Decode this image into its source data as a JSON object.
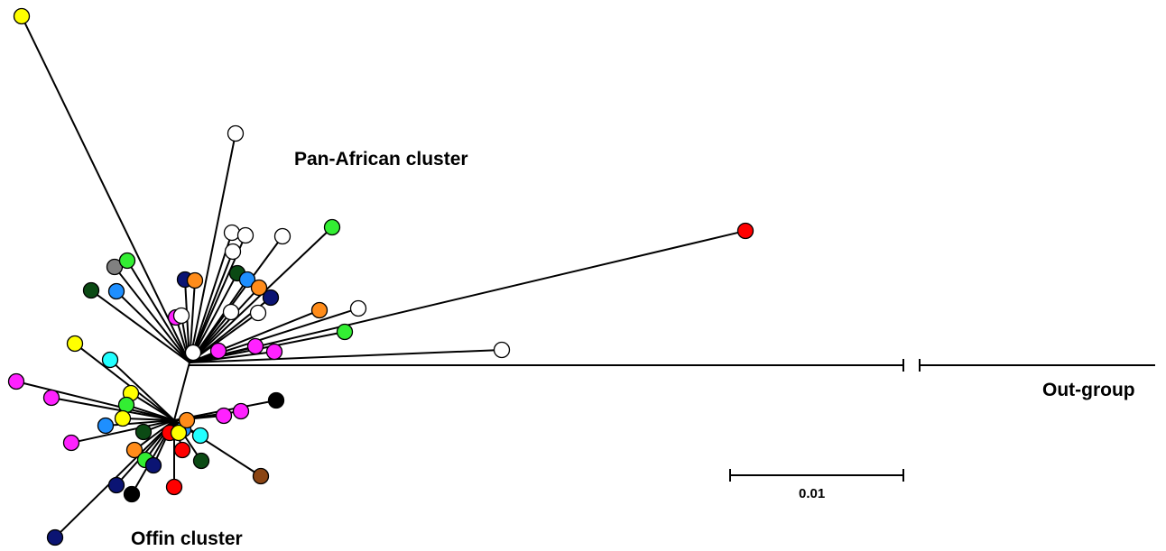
{
  "labels": {
    "pan_african": "Pan-African cluster",
    "offin": "Offin cluster",
    "outgroup": "Out-group",
    "scale_bar": "0.01"
  },
  "colors": {
    "yellow": "#ffff00",
    "white": "#ffffff",
    "green": "#33ee33",
    "red": "#ff0000",
    "grey": "#808080",
    "dark_green": "#0b4a14",
    "blue": "#1e8fff",
    "navy": "#0b1473",
    "orange": "#ff8c1a",
    "magenta": "#ff22ff",
    "cyan": "#22ffff",
    "black": "#000000",
    "brown": "#8b4513"
  },
  "pan_african_leaves": [
    "yellow",
    "white",
    "green",
    "red",
    "white",
    "white",
    "white",
    "white",
    "grey",
    "green",
    "dark_green",
    "blue",
    "navy",
    "orange",
    "dark_green",
    "blue",
    "orange",
    "navy",
    "magenta",
    "white",
    "white",
    "white",
    "orange",
    "white",
    "green",
    "white",
    "magenta",
    "magenta",
    "magenta",
    "white"
  ],
  "offin_leaves": [
    "yellow",
    "cyan",
    "magenta",
    "magenta",
    "yellow",
    "green",
    "blue",
    "yellow",
    "magenta",
    "dark_green",
    "orange",
    "green",
    "navy",
    "navy",
    "black",
    "navy",
    "red",
    "red",
    "red",
    "blue",
    "yellow",
    "cyan",
    "dark_green",
    "brown",
    "orange",
    "magenta",
    "magenta",
    "black"
  ]
}
